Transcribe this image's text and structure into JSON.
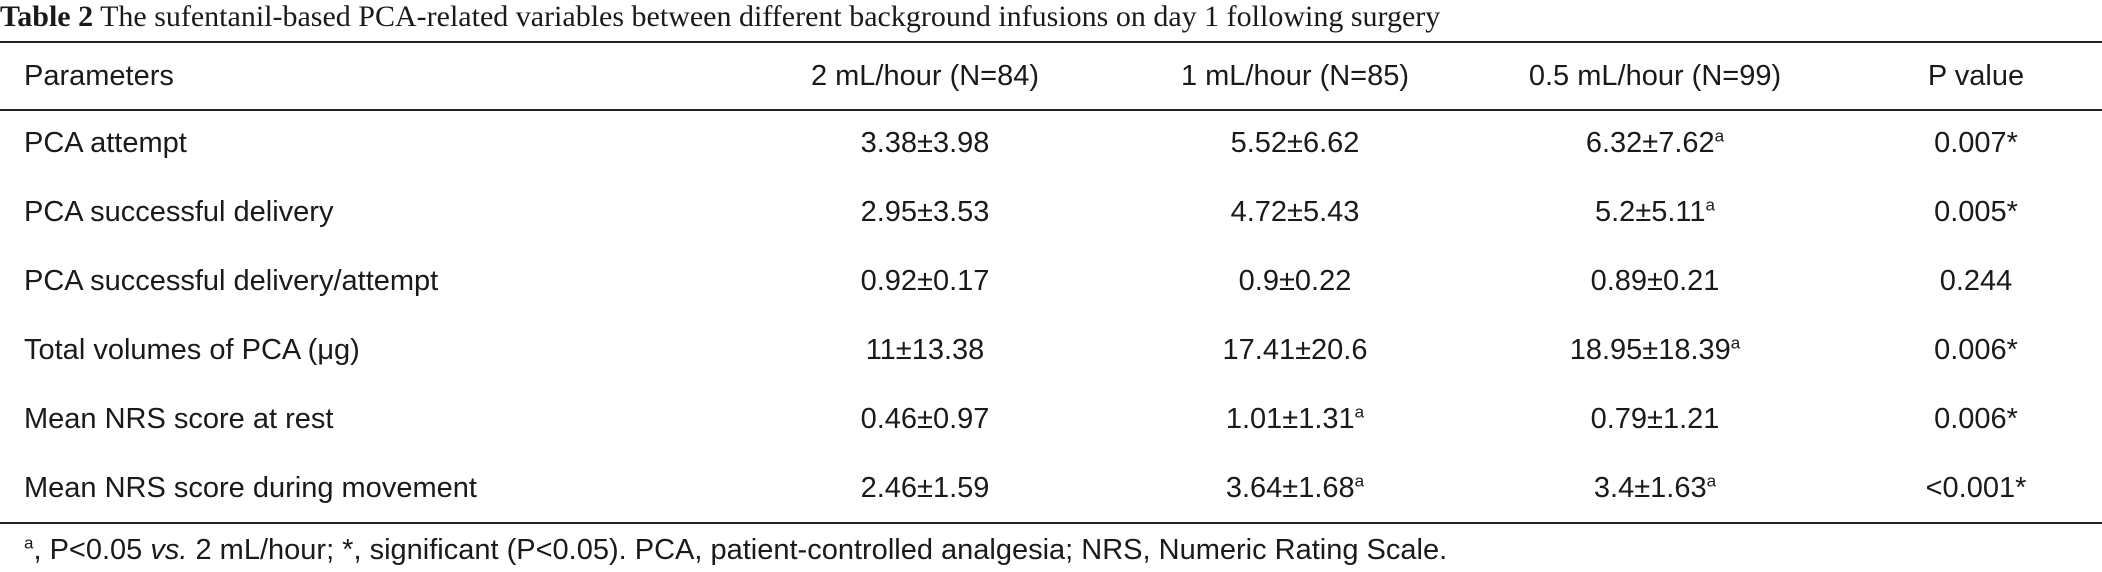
{
  "caption": {
    "label": "Table 2",
    "text": "The sufentanil-based PCA-related variables between different background infusions on day 1 following surgery"
  },
  "table": {
    "headers": [
      "Parameters",
      "2 mL/hour (N=84)",
      "1 mL/hour (N=85)",
      "0.5 mL/hour (N=99)",
      "P value"
    ],
    "rows": [
      {
        "param": "PCA attempt",
        "cells": [
          {
            "value": "3.38±3.98",
            "sup": ""
          },
          {
            "value": "5.52±6.62",
            "sup": ""
          },
          {
            "value": "6.32±7.62",
            "sup": "a"
          },
          {
            "value": "0.007*",
            "sup": ""
          }
        ]
      },
      {
        "param": "PCA successful delivery",
        "cells": [
          {
            "value": "2.95±3.53",
            "sup": ""
          },
          {
            "value": "4.72±5.43",
            "sup": ""
          },
          {
            "value": "5.2±5.11",
            "sup": "a"
          },
          {
            "value": "0.005*",
            "sup": ""
          }
        ]
      },
      {
        "param": "PCA successful delivery/attempt",
        "cells": [
          {
            "value": "0.92±0.17",
            "sup": ""
          },
          {
            "value": "0.9±0.22",
            "sup": ""
          },
          {
            "value": "0.89±0.21",
            "sup": ""
          },
          {
            "value": "0.244",
            "sup": ""
          }
        ]
      },
      {
        "param": "Total volumes of PCA (μg)",
        "cells": [
          {
            "value": "11±13.38",
            "sup": ""
          },
          {
            "value": "17.41±20.6",
            "sup": ""
          },
          {
            "value": "18.95±18.39",
            "sup": "a"
          },
          {
            "value": "0.006*",
            "sup": ""
          }
        ]
      },
      {
        "param": "Mean NRS score at rest",
        "cells": [
          {
            "value": "0.46±0.97",
            "sup": ""
          },
          {
            "value": "1.01±1.31",
            "sup": "a"
          },
          {
            "value": "0.79±1.21",
            "sup": ""
          },
          {
            "value": "0.006*",
            "sup": ""
          }
        ]
      },
      {
        "param": "Mean NRS score during movement",
        "cells": [
          {
            "value": "2.46±1.59",
            "sup": ""
          },
          {
            "value": "3.64±1.68",
            "sup": "a"
          },
          {
            "value": "3.4±1.63",
            "sup": "a"
          },
          {
            "value": "<0.001*",
            "sup": ""
          }
        ]
      }
    ]
  },
  "footnote": {
    "sup": "a",
    "part1": ", P<0.05 ",
    "vs": "vs.",
    "part2": " 2 mL/hour; *, significant (P<0.05). PCA, patient-controlled analgesia; NRS, Numeric Rating Scale."
  }
}
